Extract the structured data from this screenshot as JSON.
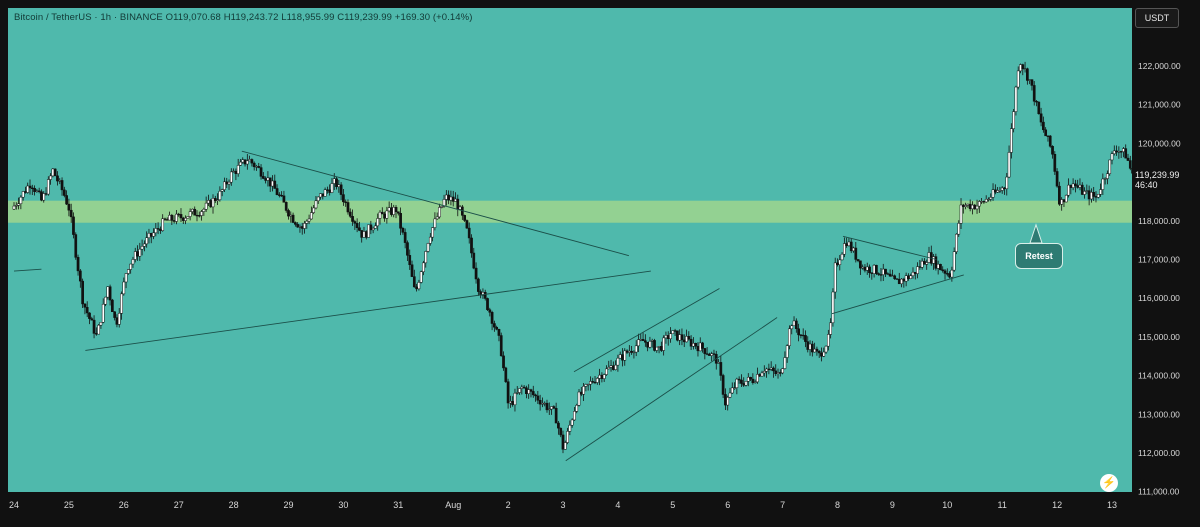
{
  "header": {
    "symbol": "Bitcoin / TetherUS · 1h · BINANCE",
    "open": "O119,070.68",
    "high": "H119,243.72",
    "low": "L118,955.99",
    "close": "C119,239.99",
    "change": "+169.30 (+0.14%)"
  },
  "currency": "USDT",
  "last_price": {
    "price": "119,239.99",
    "countdown": "46:40"
  },
  "annotation": {
    "label": "Retest"
  },
  "colors": {
    "background": "#4fb9ac",
    "candle": "#111111",
    "zone": "#a9d98a",
    "trendline": "#1b4f49",
    "bubble": "#2e7b73"
  },
  "chart_data": {
    "type": "candlestick",
    "ylim": [
      110850,
      123550
    ],
    "xlim": [
      24.0,
      13.7
    ],
    "price_ticks": [
      "122,000.00",
      "121,000.00",
      "120,000.00",
      "119,000.00",
      "118,000.00",
      "117,000.00",
      "116,000.00",
      "115,000.00",
      "114,000.00",
      "113,000.00",
      "112,000.00",
      "111,000.00"
    ],
    "price_tick_values": [
      122000,
      121000,
      120000,
      119000,
      118000,
      117000,
      116000,
      115000,
      114000,
      113000,
      112000,
      111000
    ],
    "date_ticks": [
      "24",
      "25",
      "26",
      "27",
      "28",
      "29",
      "30",
      "31",
      "Aug",
      "2",
      "3",
      "4",
      "5",
      "6",
      "7",
      "8",
      "9",
      "10",
      "11",
      "12",
      "13"
    ],
    "date_tick_days": [
      24,
      25,
      26,
      27,
      28,
      29,
      30,
      31,
      32,
      33,
      34,
      35,
      36,
      37,
      38,
      39,
      40,
      41,
      42,
      43,
      44
    ],
    "zone": [
      117950,
      118520
    ],
    "path": [
      [
        24.0,
        118300
      ],
      [
        24.35,
        119000
      ],
      [
        24.55,
        118500
      ],
      [
        24.75,
        119300
      ],
      [
        24.95,
        118700
      ],
      [
        25.05,
        118300
      ],
      [
        25.3,
        115900
      ],
      [
        25.55,
        115000
      ],
      [
        25.75,
        116300
      ],
      [
        25.9,
        115300
      ],
      [
        26.1,
        116800
      ],
      [
        26.4,
        117400
      ],
      [
        26.8,
        118000
      ],
      [
        27.1,
        118100
      ],
      [
        27.5,
        118300
      ],
      [
        27.8,
        118700
      ],
      [
        28.0,
        119200
      ],
      [
        28.3,
        119600
      ],
      [
        28.6,
        119200
      ],
      [
        28.8,
        118800
      ],
      [
        29.1,
        118100
      ],
      [
        29.3,
        117800
      ],
      [
        29.6,
        118600
      ],
      [
        29.9,
        119000
      ],
      [
        30.1,
        118400
      ],
      [
        30.4,
        117600
      ],
      [
        30.7,
        118100
      ],
      [
        31.0,
        118300
      ],
      [
        31.15,
        117500
      ],
      [
        31.35,
        116100
      ],
      [
        31.6,
        117600
      ],
      [
        31.9,
        118600
      ],
      [
        32.1,
        118500
      ],
      [
        32.3,
        117700
      ],
      [
        32.5,
        116300
      ],
      [
        32.7,
        115700
      ],
      [
        32.9,
        114800
      ],
      [
        33.05,
        113200
      ],
      [
        33.3,
        113700
      ],
      [
        33.6,
        113400
      ],
      [
        33.9,
        113000
      ],
      [
        34.05,
        112100
      ],
      [
        34.3,
        113400
      ],
      [
        34.6,
        113900
      ],
      [
        34.9,
        114200
      ],
      [
        35.2,
        114600
      ],
      [
        35.5,
        114900
      ],
      [
        35.8,
        114700
      ],
      [
        36.0,
        115100
      ],
      [
        36.3,
        114900
      ],
      [
        36.6,
        114700
      ],
      [
        36.85,
        114400
      ],
      [
        37.0,
        113300
      ],
      [
        37.2,
        113800
      ],
      [
        37.5,
        113900
      ],
      [
        37.7,
        114200
      ],
      [
        38.0,
        114000
      ],
      [
        38.2,
        115400
      ],
      [
        38.5,
        114800
      ],
      [
        38.7,
        114500
      ],
      [
        38.9,
        115000
      ],
      [
        39.0,
        116800
      ],
      [
        39.2,
        117500
      ],
      [
        39.5,
        116800
      ],
      [
        39.8,
        116700
      ],
      [
        40.1,
        116400
      ],
      [
        40.4,
        116600
      ],
      [
        40.7,
        117100
      ],
      [
        40.9,
        116800
      ],
      [
        41.1,
        116600
      ],
      [
        41.3,
        118400
      ],
      [
        41.6,
        118400
      ],
      [
        41.9,
        118700
      ],
      [
        42.1,
        118900
      ],
      [
        42.35,
        122200
      ],
      [
        42.55,
        121600
      ],
      [
        42.75,
        120500
      ],
      [
        42.95,
        119800
      ],
      [
        43.1,
        118400
      ],
      [
        43.3,
        119000
      ],
      [
        43.55,
        118700
      ],
      [
        43.75,
        118600
      ],
      [
        43.95,
        119300
      ],
      [
        44.1,
        119900
      ],
      [
        44.3,
        119700
      ],
      [
        44.4,
        119240
      ]
    ],
    "trendlines": [
      [
        [
          28.15,
          119800
        ],
        [
          35.2,
          117100
        ]
      ],
      [
        [
          25.3,
          114650
        ],
        [
          35.6,
          116700
        ]
      ],
      [
        [
          34.2,
          114100
        ],
        [
          36.85,
          116250
        ]
      ],
      [
        [
          34.05,
          111800
        ],
        [
          37.9,
          115500
        ]
      ],
      [
        [
          39.1,
          117600
        ],
        [
          40.8,
          117000
        ]
      ],
      [
        [
          38.9,
          115600
        ],
        [
          41.3,
          116600
        ]
      ],
      [
        [
          24.0,
          116700
        ],
        [
          24.5,
          116750
        ]
      ]
    ]
  }
}
